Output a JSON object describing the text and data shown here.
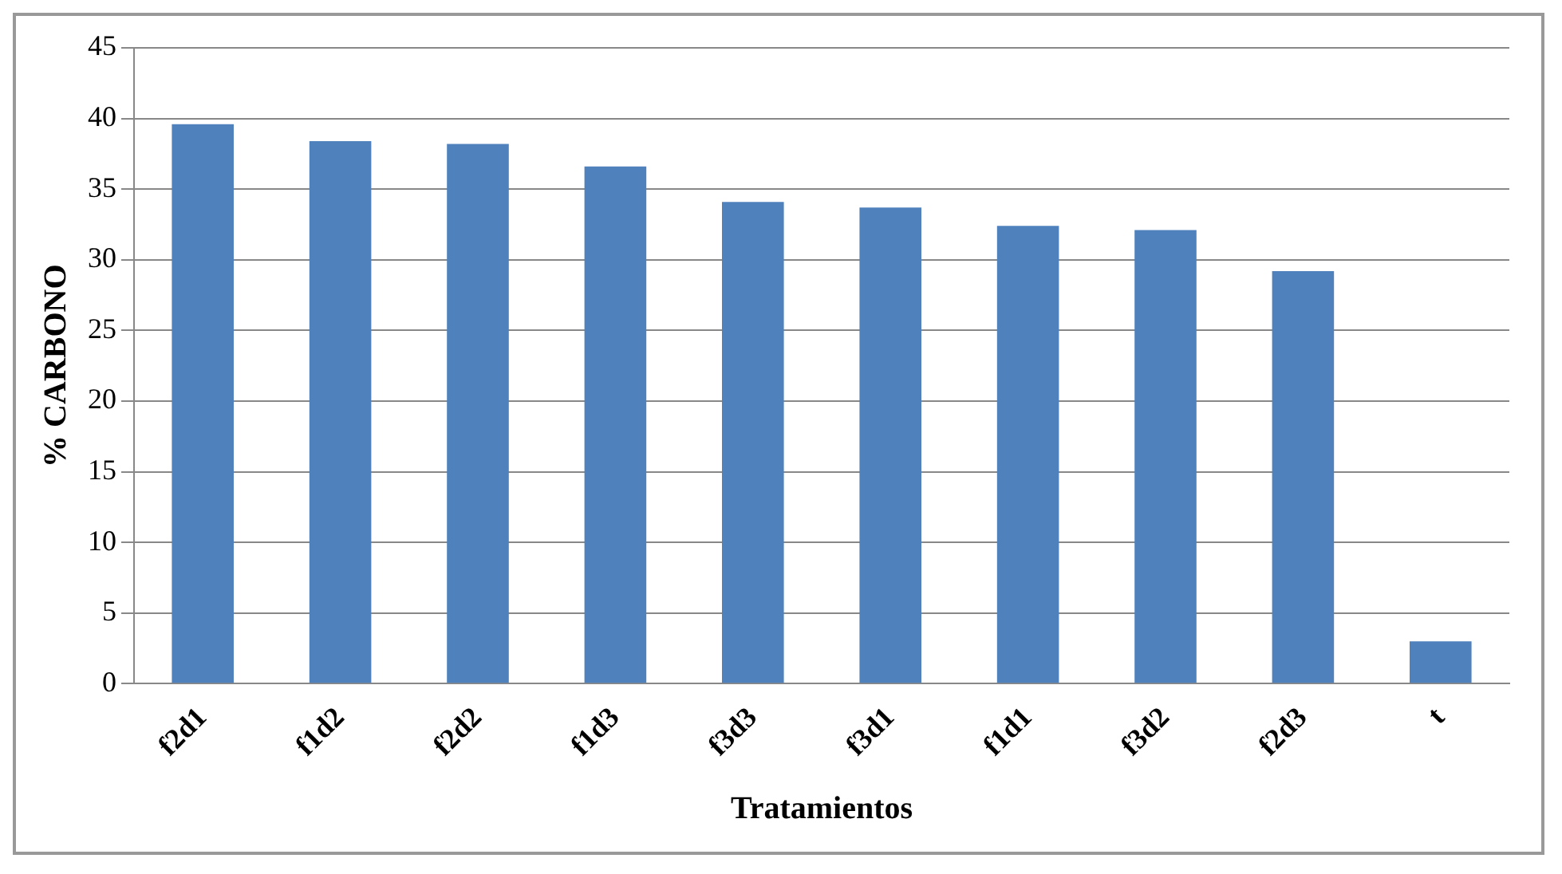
{
  "chart_data": {
    "type": "bar",
    "xlabel": "Tratamientos",
    "ylabel": "% CARBONO",
    "categories": [
      "f2d1",
      "f1d2",
      "f2d2",
      "f1d3",
      "f3d3",
      "f3d1",
      "f1d1",
      "f3d2",
      "f2d3",
      "t"
    ],
    "values": [
      39.6,
      38.4,
      38.2,
      36.6,
      34.1,
      33.7,
      32.4,
      32.1,
      29.2,
      3.0
    ],
    "color": "#4f81bd",
    "ylim": [
      0,
      45
    ],
    "yticks": [
      0,
      5,
      10,
      15,
      20,
      25,
      30,
      35,
      40,
      45
    ],
    "grid": "y",
    "legend": false
  }
}
